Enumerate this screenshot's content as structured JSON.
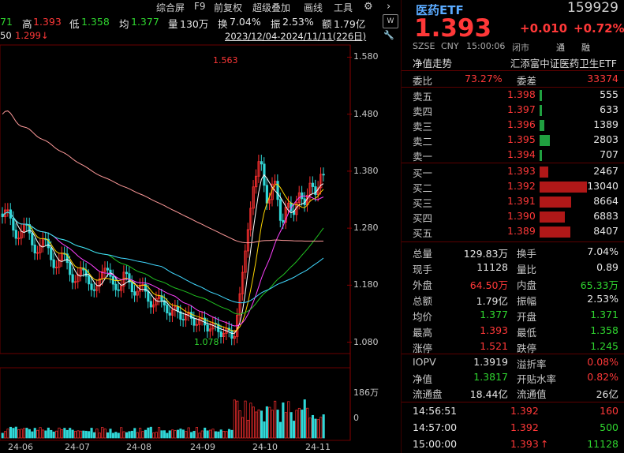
{
  "toolbar": {
    "items": [
      "综合屏",
      "F9",
      "前复权",
      "超级叠加",
      "画线",
      "工具"
    ]
  },
  "stats": {
    "open_partial": "71",
    "high_label": "高",
    "high": "1.393",
    "low_label": "低",
    "low": "1.358",
    "avg_label": "均",
    "avg": "1.377",
    "vol_label": "量",
    "vol": "130万",
    "turnover_label": "换",
    "turnover": "7.04%",
    "amp_label": "振",
    "amp": "2.53%",
    "amount_label": "额",
    "amount": "1.79亿"
  },
  "range": {
    "left_partial": "50",
    "left_price": "1.299↓",
    "period": "2023/12/04-2024/11/11(226日)"
  },
  "chart": {
    "y_ticks": [
      "1.580",
      "1.480",
      "1.380",
      "1.280",
      "1.180",
      "1.080"
    ],
    "vol_ticks": [
      "186万",
      "0"
    ],
    "x_ticks": [
      "24-06",
      "24-07",
      "24-08",
      "24-09",
      "24-10",
      "24-11"
    ],
    "high_marker": "1.563",
    "low_marker": "1.078"
  },
  "chart_data": {
    "type": "candlestick",
    "ylim": [
      1.06,
      1.6
    ],
    "highest": 1.563,
    "lowest": 1.078,
    "x_ticks": [
      "24-06",
      "24-07",
      "24-08",
      "24-09",
      "24-10",
      "24-11"
    ]
  },
  "quote": {
    "name": "医药ETF",
    "code": "159929",
    "price": "1.393",
    "change": "+0.010",
    "change_pct": "+0.72%",
    "market": "SZSE",
    "currency": "CNY",
    "time": "15:00:06",
    "state": "闭市",
    "tongtag": "通",
    "rongtag": "融",
    "tab": "净值走势",
    "fullname": "汇添富中证医药卫生ETF",
    "ratio_label": "委比",
    "ratio": "73.27%",
    "diff_label": "委差",
    "diff": "33374",
    "asks": [
      {
        "label": "卖五",
        "price": "1.398",
        "vol": "555",
        "bar": 0.0426
      },
      {
        "label": "卖四",
        "price": "1.397",
        "vol": "633",
        "bar": 0.0485
      },
      {
        "label": "卖三",
        "price": "1.396",
        "vol": "1389",
        "bar": 0.1065
      },
      {
        "label": "卖二",
        "price": "1.395",
        "vol": "2803",
        "bar": 0.215
      },
      {
        "label": "卖一",
        "price": "1.394",
        "vol": "707",
        "bar": 0.0542
      }
    ],
    "bids": [
      {
        "label": "买一",
        "price": "1.393",
        "vol": "2467",
        "bar": 0.189
      },
      {
        "label": "买二",
        "price": "1.392",
        "vol": "13040",
        "bar": 1.0
      },
      {
        "label": "买三",
        "price": "1.391",
        "vol": "8664",
        "bar": 0.664
      },
      {
        "label": "买四",
        "price": "1.390",
        "vol": "6883",
        "bar": 0.528
      },
      {
        "label": "买五",
        "price": "1.389",
        "vol": "8407",
        "bar": 0.645
      }
    ],
    "details": [
      [
        "总量",
        "129.83万",
        "white",
        "换手",
        "7.04%",
        "white"
      ],
      [
        "现手",
        "11128",
        "white",
        "量比",
        "0.89",
        "white"
      ],
      [
        "外盘",
        "64.50万",
        "up",
        "内盘",
        "65.33万",
        "down"
      ],
      [
        "总额",
        "1.79亿",
        "white",
        "振幅",
        "2.53%",
        "white"
      ],
      [
        "均价",
        "1.377",
        "down",
        "开盘",
        "1.371",
        "down"
      ],
      [
        "最高",
        "1.393",
        "up",
        "最低",
        "1.358",
        "down"
      ],
      [
        "涨停",
        "1.521",
        "up",
        "跌停",
        "1.245",
        "down"
      ]
    ],
    "nav": [
      [
        "IOPV",
        "1.3919",
        "white",
        "溢折率",
        "0.08%",
        "up"
      ],
      [
        "净值",
        "1.3817",
        "down",
        "开贴水率",
        "0.82%",
        "up"
      ],
      [
        "流通盘",
        "18.44亿",
        "white",
        "流通值",
        "26亿",
        "white"
      ]
    ],
    "ticks": [
      {
        "time": "14:56:51",
        "price": "1.392",
        "vol": "160",
        "vcls": "up"
      },
      {
        "time": "14:57:00",
        "price": "1.392",
        "vol": "500",
        "vcls": "down"
      },
      {
        "time": "15:00:00",
        "price": "1.393",
        "arrow": "↑",
        "vol": "11128",
        "vcls": "down"
      }
    ]
  }
}
